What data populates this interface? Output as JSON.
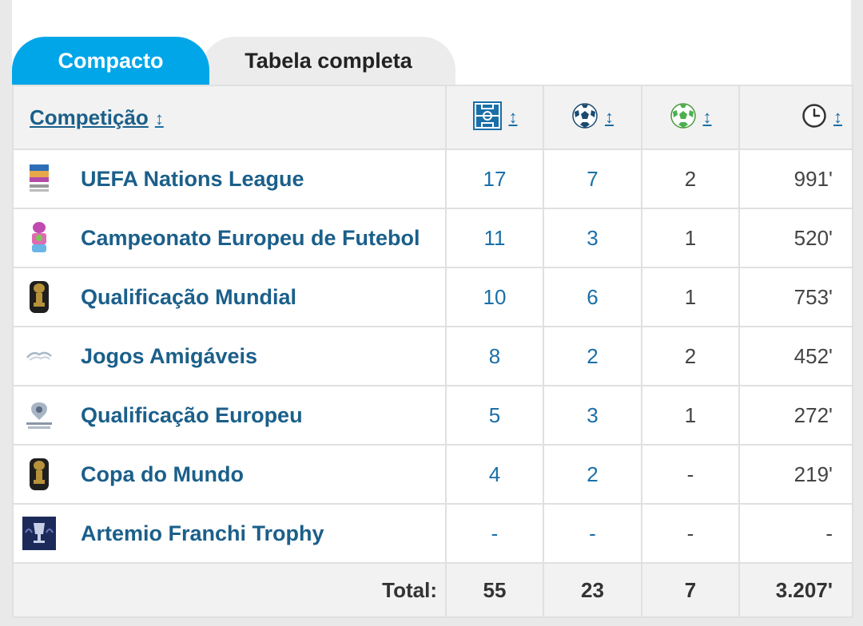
{
  "tabs": [
    {
      "label": "Compacto",
      "active": true
    },
    {
      "label": "Tabela completa",
      "active": false
    }
  ],
  "header": {
    "competition_label": "Competição",
    "sort_glyph": "↕",
    "columns": [
      {
        "icon": "pitch-icon"
      },
      {
        "icon": "football-goal-icon"
      },
      {
        "icon": "football-assist-icon"
      },
      {
        "icon": "clock-icon"
      }
    ]
  },
  "rows": [
    {
      "name": "UEFA Nations League",
      "logo": "nations-league-logo",
      "apps": "17",
      "goals": "7",
      "assists": "2",
      "minutes": "991'"
    },
    {
      "name": "Campeonato Europeu de Futebol",
      "logo": "euro-logo",
      "apps": "11",
      "goals": "3",
      "assists": "1",
      "minutes": "520'"
    },
    {
      "name": "Qualificação Mundial",
      "logo": "world-cup-trophy-logo",
      "apps": "10",
      "goals": "6",
      "assists": "1",
      "minutes": "753'"
    },
    {
      "name": "Jogos Amigáveis",
      "logo": "friendlies-logo",
      "apps": "8",
      "goals": "2",
      "assists": "2",
      "minutes": "452'"
    },
    {
      "name": "Qualificação Europeu",
      "logo": "euro-qualifiers-logo",
      "apps": "5",
      "goals": "3",
      "assists": "1",
      "minutes": "272'"
    },
    {
      "name": "Copa do Mundo",
      "logo": "world-cup-trophy-logo",
      "apps": "4",
      "goals": "2",
      "assists": "-",
      "minutes": "219'"
    },
    {
      "name": "Artemio Franchi Trophy",
      "logo": "finalissima-logo",
      "apps": "-",
      "goals": "-",
      "assists": "-",
      "minutes": "-"
    }
  ],
  "totals": {
    "label": "Total:",
    "apps": "55",
    "goals": "23",
    "assists": "7",
    "minutes": "3.207'"
  },
  "colors": {
    "accent": "#00a6e8",
    "link": "#1b5f8a",
    "header_bg": "#f2f2f2"
  }
}
